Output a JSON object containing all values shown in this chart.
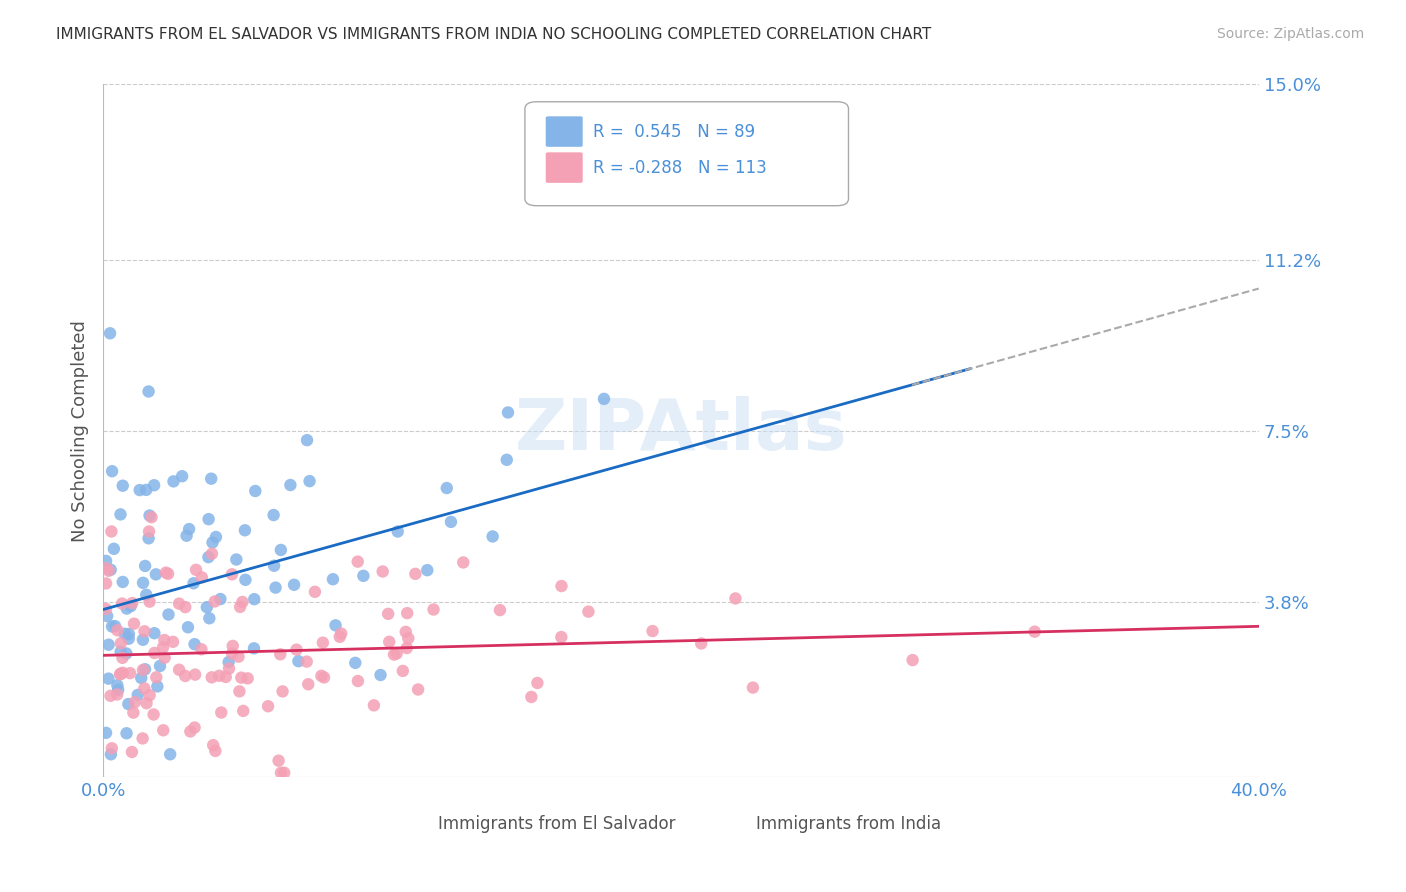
{
  "title": "IMMIGRANTS FROM EL SALVADOR VS IMMIGRANTS FROM INDIA NO SCHOOLING COMPLETED CORRELATION CHART",
  "source": "Source: ZipAtlas.com",
  "ylabel": "No Schooling Completed",
  "xlim": [
    0.0,
    0.4
  ],
  "ylim": [
    0.0,
    0.15
  ],
  "xtick_labels": [
    "0.0%",
    "40.0%"
  ],
  "ytick_labels": [
    "3.8%",
    "7.5%",
    "11.2%",
    "15.0%"
  ],
  "ytick_values": [
    0.038,
    0.075,
    0.112,
    0.15
  ],
  "color_salvador": "#85b4e8",
  "color_india": "#f4a0b5",
  "trendline_salvador_color": "#1a6bc4",
  "trendline_india_color": "#d63060",
  "trendline_dashed_color": "#aaaaaa",
  "grid_color": "#cccccc",
  "background_color": "#ffffff",
  "axis_label_color": "#4a90d9",
  "legend_r_color": "#4a90d9",
  "salvador_r": 0.545,
  "salvador_n": 89,
  "india_r": -0.288,
  "india_n": 113,
  "salvador_seed": 42,
  "india_seed": 99
}
